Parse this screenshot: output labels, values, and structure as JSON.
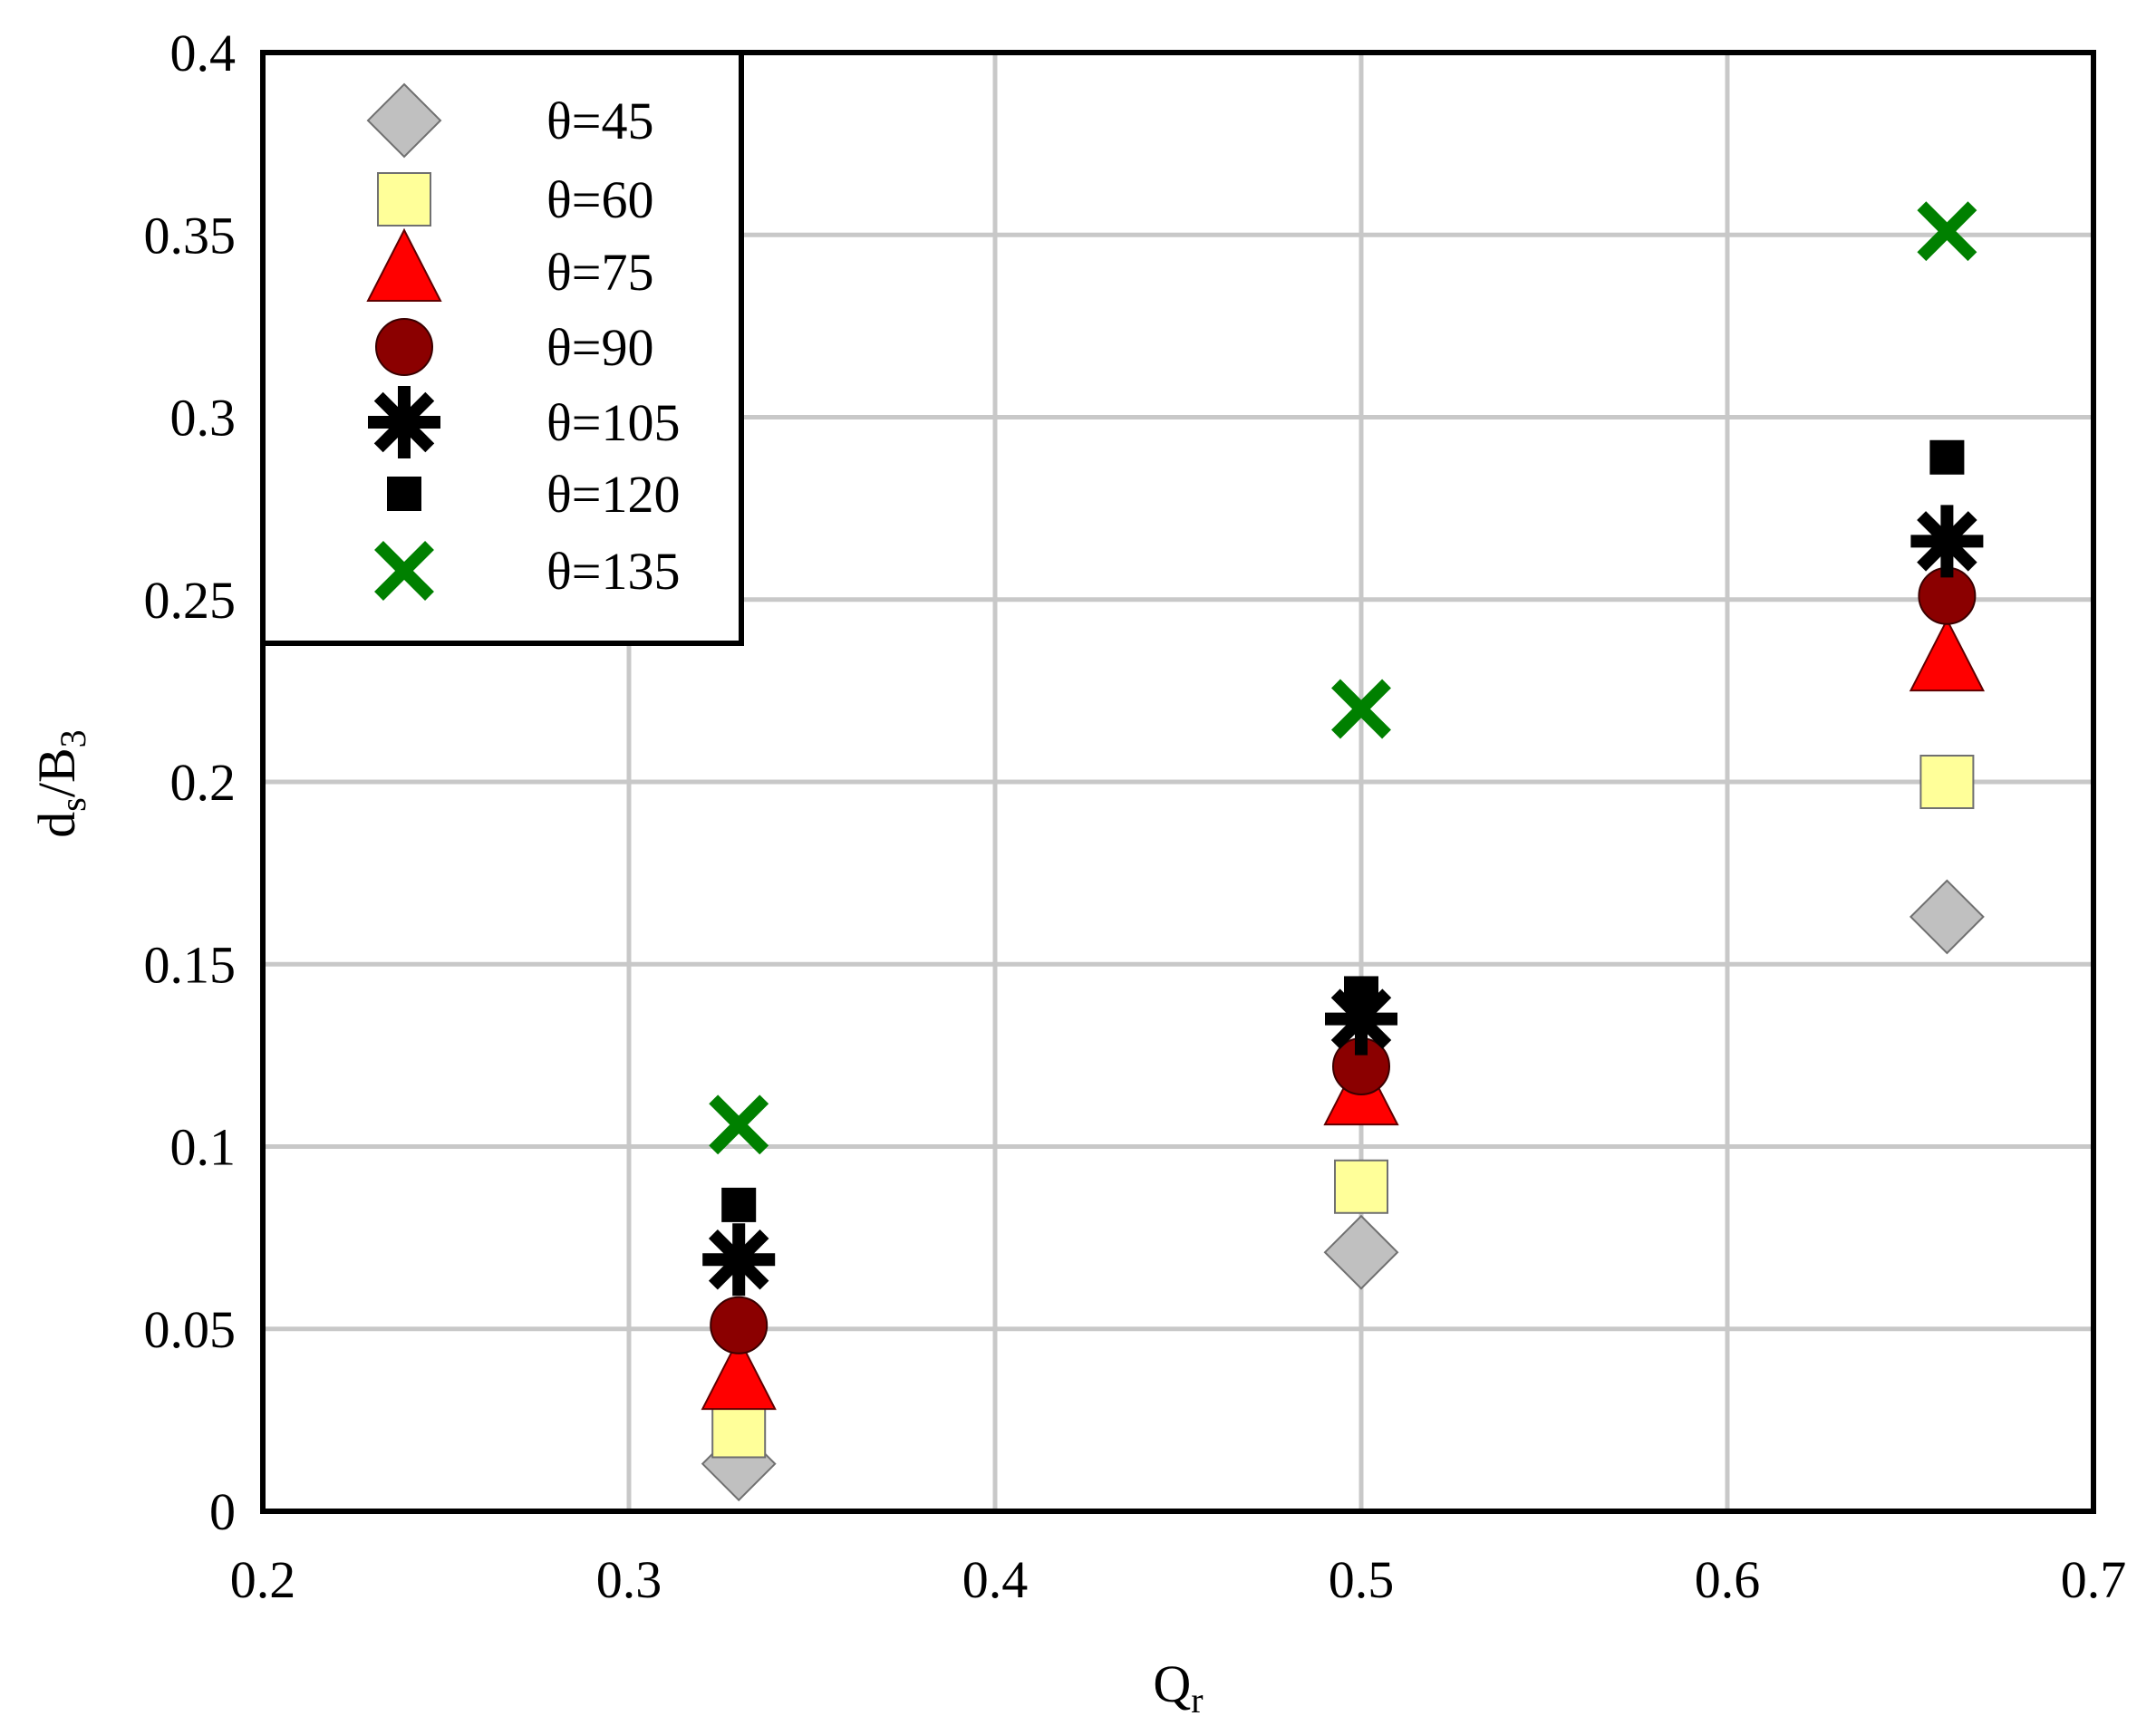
{
  "chart_data": {
    "type": "scatter",
    "title": "",
    "xlabel": "Q",
    "xlabel_sub": "r",
    "ylabel": "d",
    "ylabel_sub1": "s",
    "ylabel_mid": "/B",
    "ylabel_sub2": "3",
    "xlim": [
      0.2,
      0.7
    ],
    "ylim": [
      0,
      0.4
    ],
    "xticks": [
      "0.2",
      "0.3",
      "0.4",
      "0.5",
      "0.6",
      "0.7"
    ],
    "yticks": [
      "0",
      "0.05",
      "0.1",
      "0.15",
      "0.2",
      "0.25",
      "0.3",
      "0.35",
      "0.4"
    ],
    "xtick_values": [
      0.2,
      0.3,
      0.4,
      0.5,
      0.6,
      0.7
    ],
    "ytick_values": [
      0,
      0.05,
      0.1,
      0.15,
      0.2,
      0.25,
      0.3,
      0.35,
      0.4
    ],
    "grid": true,
    "legend_position": "top-left",
    "series": [
      {
        "name": "θ=45",
        "marker": "diamond",
        "color": "#c0c0c0",
        "x": [
          0.33,
          0.5,
          0.66
        ],
        "y": [
          0.013,
          0.071,
          0.163
        ]
      },
      {
        "name": "θ=60",
        "marker": "square",
        "color": "#ffff99",
        "x": [
          0.33,
          0.5,
          0.66
        ],
        "y": [
          0.022,
          0.089,
          0.2
        ]
      },
      {
        "name": "θ=75",
        "marker": "triangle",
        "color": "#ff0000",
        "x": [
          0.33,
          0.5,
          0.66
        ],
        "y": [
          0.036,
          0.114,
          0.233
        ]
      },
      {
        "name": "θ=90",
        "marker": "circle",
        "color": "#8b0000",
        "x": [
          0.33,
          0.5,
          0.66
        ],
        "y": [
          0.051,
          0.122,
          0.251
        ]
      },
      {
        "name": "θ=105",
        "marker": "asterisk",
        "color": "#000000",
        "x": [
          0.33,
          0.5,
          0.66
        ],
        "y": [
          0.069,
          0.135,
          0.266
        ]
      },
      {
        "name": "θ=120",
        "marker": "small-square",
        "color": "#000000",
        "x": [
          0.33,
          0.5,
          0.66
        ],
        "y": [
          0.084,
          0.142,
          0.289
        ]
      },
      {
        "name": "θ=135",
        "marker": "x",
        "color": "#008000",
        "x": [
          0.33,
          0.5,
          0.66
        ],
        "y": [
          0.106,
          0.22,
          0.351
        ]
      }
    ]
  }
}
